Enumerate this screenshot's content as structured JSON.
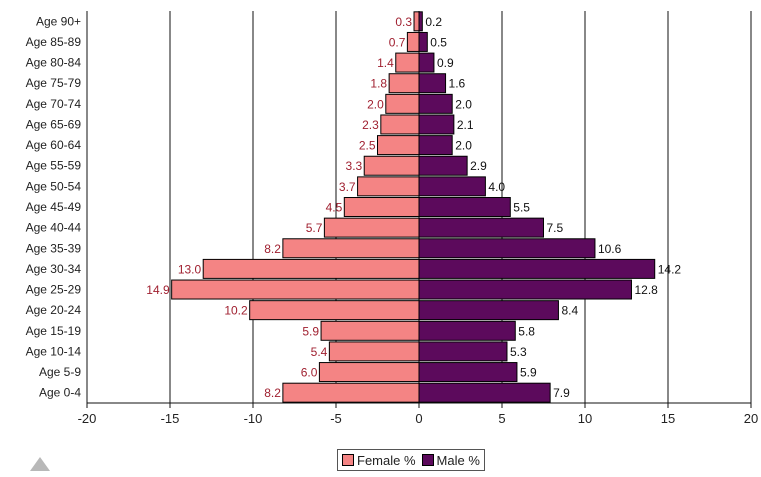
{
  "chart_data": {
    "type": "bar",
    "orientation": "horizontal",
    "layout": "population-pyramid",
    "categories": [
      "Age 0-4",
      "Age 5-9",
      "Age 10-14",
      "Age 15-19",
      "Age 20-24",
      "Age 25-29",
      "Age 30-34",
      "Age 35-39",
      "Age 40-44",
      "Age 45-49",
      "Age 50-54",
      "Age 55-59",
      "Age 60-64",
      "Age 65-69",
      "Age 70-74",
      "Age 75-79",
      "Age 80-84",
      "Age 85-89",
      "Age 90+"
    ],
    "series": [
      {
        "name": "Female %",
        "color": "#f48484",
        "label_color": "#a02030",
        "values": [
          8.2,
          6.0,
          5.4,
          5.9,
          10.2,
          14.9,
          13.0,
          8.2,
          5.7,
          4.5,
          3.7,
          3.3,
          2.5,
          2.3,
          2.0,
          1.8,
          1.4,
          0.7,
          0.3
        ],
        "labels": [
          "8.2",
          "6.0",
          "5.4",
          "5.9",
          "10.2",
          "14.9",
          "13.0",
          "8.2",
          "5.7",
          "4.5",
          "3.7",
          "3.3",
          "2.5",
          "2.3",
          "2.0",
          "1.8",
          "1.4",
          "0.7",
          "0.3"
        ]
      },
      {
        "name": "Male %",
        "color": "#5c0a5c",
        "label_color": "#111111",
        "values": [
          7.9,
          5.9,
          5.3,
          5.8,
          8.4,
          12.8,
          14.2,
          10.6,
          7.5,
          5.5,
          4.0,
          2.9,
          2.0,
          2.1,
          2.0,
          1.6,
          0.9,
          0.5,
          0.2
        ],
        "labels": [
          "7.9",
          "5.9",
          "5.3",
          "5.8",
          "8.4",
          "12.8",
          "14.2",
          "10.6",
          "7.5",
          "5.5",
          "4.0",
          "2.9",
          "2.0",
          "2.1",
          "2.0",
          "1.6",
          "0.9",
          "0.5",
          "0.2"
        ]
      }
    ],
    "xlim": [
      -20,
      20
    ],
    "xticks": [
      "-20",
      "-15",
      "-10",
      "-5",
      "0",
      "5",
      "10",
      "15",
      "20"
    ],
    "grid": "vertical",
    "legend": "bottom-center",
    "title": "",
    "xlabel": "",
    "ylabel": ""
  }
}
